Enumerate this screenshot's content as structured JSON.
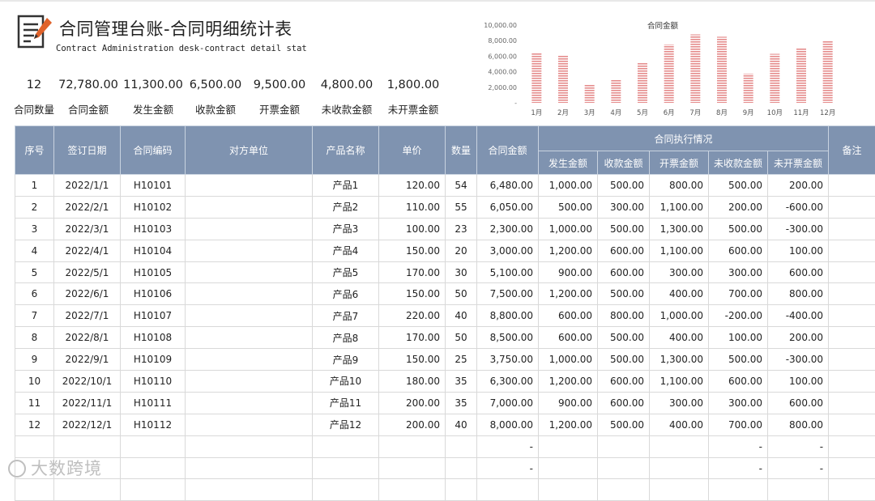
{
  "header": {
    "title": "合同管理台账-合同明细统计表",
    "subtitle": "Contract Administration desk-contract detail stat"
  },
  "stats": [
    {
      "value": "12",
      "label": "合同数量"
    },
    {
      "value": "72,780.00",
      "label": "合同金额"
    },
    {
      "value": "11,300.00",
      "label": "发生金额"
    },
    {
      "value": "6,500.00",
      "label": "收款金额"
    },
    {
      "value": "9,500.00",
      "label": "开票金额"
    },
    {
      "value": "4,800.00",
      "label": "未收款金额"
    },
    {
      "value": "1,800.00",
      "label": "未开票金额"
    }
  ],
  "chart_data": {
    "type": "bar",
    "title": "合同金额",
    "categories": [
      "1月",
      "2月",
      "3月",
      "4月",
      "5月",
      "6月",
      "7月",
      "8月",
      "9月",
      "10月",
      "11月",
      "12月"
    ],
    "values": [
      6480,
      6050,
      2300,
      3000,
      5100,
      7500,
      8800,
      8500,
      3750,
      6300,
      7000,
      8000
    ],
    "yticks": [
      "10,000.00",
      "8,000.00",
      "6,000.00",
      "4,000.00",
      "2,000.00",
      "-"
    ],
    "ylim": [
      0,
      10000
    ],
    "grid": false,
    "legend": "none",
    "bar_color": "#e89a9a"
  },
  "table": {
    "headers": {
      "seq": "序号",
      "date": "签订日期",
      "code": "合同编码",
      "party": "对方单位",
      "product": "产品名称",
      "price": "单价",
      "qty": "数量",
      "amount": "合同金额",
      "group": "合同执行情况",
      "occurred": "发生金额",
      "received": "收款金额",
      "invoiced": "开票金额",
      "unreceived": "未收款金额",
      "uninvoiced": "未开票金额",
      "note": "备注"
    },
    "rows": [
      [
        "1",
        "2022/1/1",
        "H10101",
        "",
        "产品1",
        "120.00",
        "54",
        "6,480.00",
        "1,000.00",
        "500.00",
        "800.00",
        "500.00",
        "200.00",
        ""
      ],
      [
        "2",
        "2022/2/1",
        "H10102",
        "",
        "产品2",
        "110.00",
        "55",
        "6,050.00",
        "500.00",
        "300.00",
        "1,100.00",
        "200.00",
        "-600.00",
        ""
      ],
      [
        "3",
        "2022/3/1",
        "H10103",
        "",
        "产品3",
        "100.00",
        "23",
        "2,300.00",
        "1,000.00",
        "500.00",
        "1,300.00",
        "500.00",
        "-300.00",
        ""
      ],
      [
        "4",
        "2022/4/1",
        "H10104",
        "",
        "产品4",
        "150.00",
        "20",
        "3,000.00",
        "1,200.00",
        "600.00",
        "1,100.00",
        "600.00",
        "100.00",
        ""
      ],
      [
        "5",
        "2022/5/1",
        "H10105",
        "",
        "产品5",
        "170.00",
        "30",
        "5,100.00",
        "900.00",
        "600.00",
        "300.00",
        "300.00",
        "600.00",
        ""
      ],
      [
        "6",
        "2022/6/1",
        "H10106",
        "",
        "产品6",
        "150.00",
        "50",
        "7,500.00",
        "1,200.00",
        "500.00",
        "400.00",
        "700.00",
        "800.00",
        ""
      ],
      [
        "7",
        "2022/7/1",
        "H10107",
        "",
        "产品7",
        "220.00",
        "40",
        "8,800.00",
        "600.00",
        "800.00",
        "1,000.00",
        "-200.00",
        "-400.00",
        ""
      ],
      [
        "8",
        "2022/8/1",
        "H10108",
        "",
        "产品8",
        "170.00",
        "50",
        "8,500.00",
        "600.00",
        "500.00",
        "400.00",
        "100.00",
        "200.00",
        ""
      ],
      [
        "9",
        "2022/9/1",
        "H10109",
        "",
        "产品9",
        "150.00",
        "25",
        "3,750.00",
        "1,000.00",
        "500.00",
        "1,300.00",
        "500.00",
        "-300.00",
        ""
      ],
      [
        "10",
        "2022/10/1",
        "H10110",
        "",
        "产品10",
        "180.00",
        "35",
        "6,300.00",
        "1,200.00",
        "600.00",
        "1,100.00",
        "600.00",
        "100.00",
        ""
      ],
      [
        "11",
        "2022/11/1",
        "H10111",
        "",
        "产品11",
        "200.00",
        "35",
        "7,000.00",
        "900.00",
        "600.00",
        "300.00",
        "300.00",
        "600.00",
        ""
      ],
      [
        "12",
        "2022/12/1",
        "H10112",
        "",
        "产品12",
        "200.00",
        "40",
        "8,000.00",
        "1,200.00",
        "500.00",
        "400.00",
        "700.00",
        "800.00",
        ""
      ],
      [
        "",
        "",
        "",
        "",
        "",
        "",
        "",
        "-",
        "",
        "",
        "",
        "-",
        "-",
        ""
      ],
      [
        "",
        "",
        "",
        "",
        "",
        "",
        "",
        "-",
        "",
        "",
        "",
        "-",
        "-",
        ""
      ],
      [
        "",
        "",
        "",
        "",
        "",
        "",
        "",
        "",
        "",
        "",
        "",
        "",
        "",
        ""
      ]
    ]
  },
  "watermark": "大数跨境"
}
